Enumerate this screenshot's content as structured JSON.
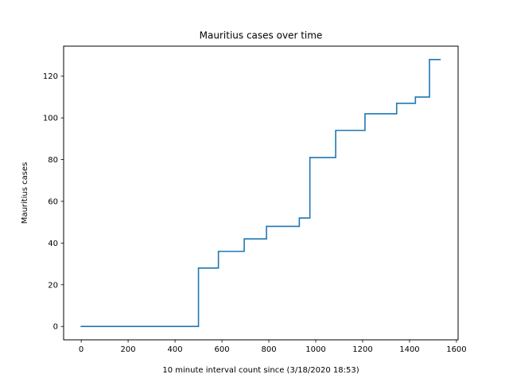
{
  "chart_data": {
    "type": "line",
    "line_style": "step",
    "title": "Mauritius cases over time",
    "xlabel": "10 minute interval count since (3/18/2020 18:53)",
    "ylabel": "Mauritius cases",
    "xlim": [
      -75,
      1607
    ],
    "ylim": [
      -6.4,
      134.4
    ],
    "x_ticks": [
      0,
      200,
      400,
      600,
      800,
      1000,
      1200,
      1400,
      1600
    ],
    "y_ticks": [
      0,
      20,
      40,
      60,
      80,
      100,
      120
    ],
    "grid": false,
    "series": [
      {
        "color": "#1f77b4",
        "x": [
          0,
          500,
          500,
          585,
          585,
          695,
          695,
          790,
          790,
          930,
          930,
          975,
          975,
          1085,
          1085,
          1210,
          1210,
          1345,
          1345,
          1425,
          1425,
          1485,
          1485,
          1530
        ],
        "y": [
          0,
          0,
          28,
          28,
          36,
          36,
          42,
          42,
          48,
          48,
          52,
          52,
          81,
          81,
          94,
          94,
          102,
          102,
          107,
          107,
          110,
          110,
          128,
          128
        ]
      }
    ]
  }
}
